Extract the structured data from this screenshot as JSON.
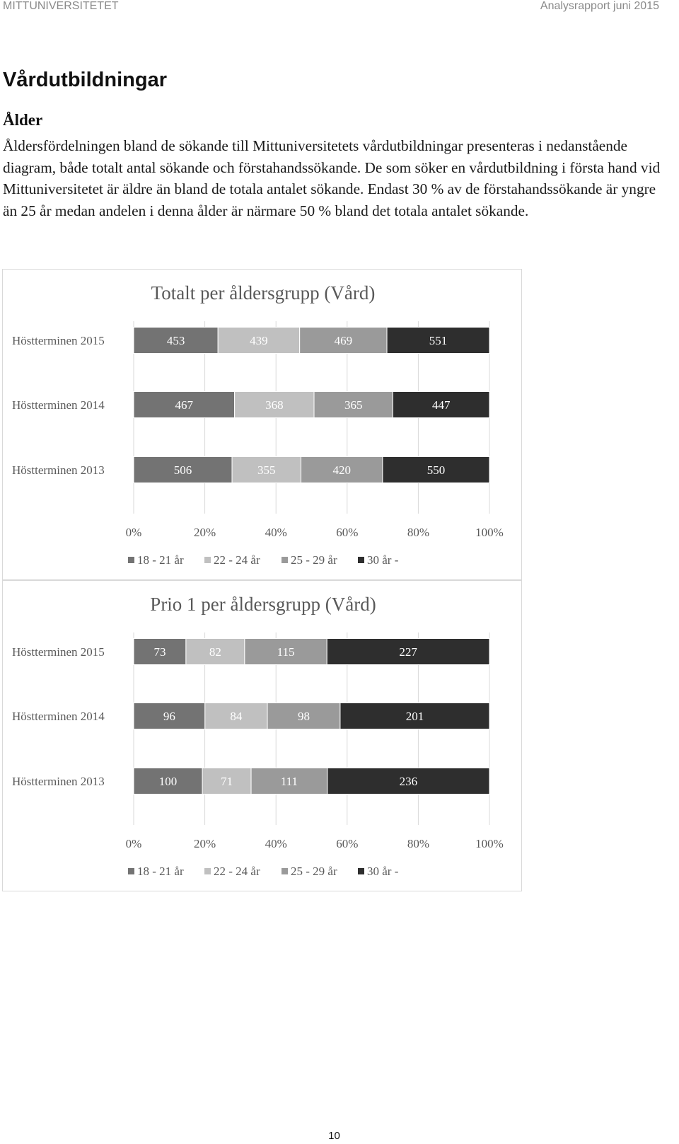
{
  "header": {
    "left": "MITTUNIVERSITETET",
    "right": "Analysrapport juni 2015"
  },
  "title": "Vårdutbildningar",
  "subtitle": "Ålder",
  "paragraph": "Åldersfördelningen bland de sökande till Mittuniversitetets vårdutbildningar presenteras i nedanstående diagram, både totalt antal sökande och förstahandssökande. De som söker en vårdutbildning i första hand vid Mittuniversitetet är äldre än bland de totala antalet sökande. Endast 30 % av de förstahandssökande är yngre än 25 år medan andelen i denna ålder är närmare 50 % bland det totala antalet sökande.",
  "page_number": "10",
  "chart_data": [
    {
      "type": "bar",
      "stacking": "100% stacked horizontal",
      "title": "Totalt per åldersgrupp (Vård)",
      "categories": [
        "Höstterminen 2015",
        "Höstterminen 2014",
        "Höstterminen 2013"
      ],
      "series": [
        {
          "name": "18 - 21 år",
          "color": "#737373",
          "values": [
            453,
            467,
            506
          ]
        },
        {
          "name": "22 - 24 år",
          "color": "#c0c0c0",
          "values": [
            439,
            368,
            355
          ]
        },
        {
          "name": "25 - 29 år",
          "color": "#9a9a9a",
          "values": [
            469,
            365,
            420
          ]
        },
        {
          "name": "30 år -",
          "color": "#2e2e2e",
          "values": [
            551,
            447,
            550
          ]
        }
      ],
      "xticks": [
        "0%",
        "20%",
        "40%",
        "60%",
        "80%",
        "100%"
      ],
      "xlim": [
        0,
        100
      ],
      "grid": "vertical",
      "legend": "bottom"
    },
    {
      "type": "bar",
      "stacking": "100% stacked horizontal",
      "title": "Prio 1 per åldersgrupp (Vård)",
      "categories": [
        "Höstterminen 2015",
        "Höstterminen 2014",
        "Höstterminen 2013"
      ],
      "series": [
        {
          "name": "18 - 21 år",
          "color": "#737373",
          "values": [
            73,
            96,
            100
          ]
        },
        {
          "name": "22 - 24 år",
          "color": "#c0c0c0",
          "values": [
            82,
            84,
            71
          ]
        },
        {
          "name": "25 - 29 år",
          "color": "#9a9a9a",
          "values": [
            115,
            98,
            111
          ]
        },
        {
          "name": "30 år -",
          "color": "#2e2e2e",
          "values": [
            227,
            201,
            236
          ]
        }
      ],
      "xticks": [
        "0%",
        "20%",
        "40%",
        "60%",
        "80%",
        "100%"
      ],
      "xlim": [
        0,
        100
      ],
      "grid": "vertical",
      "legend": "bottom"
    }
  ]
}
